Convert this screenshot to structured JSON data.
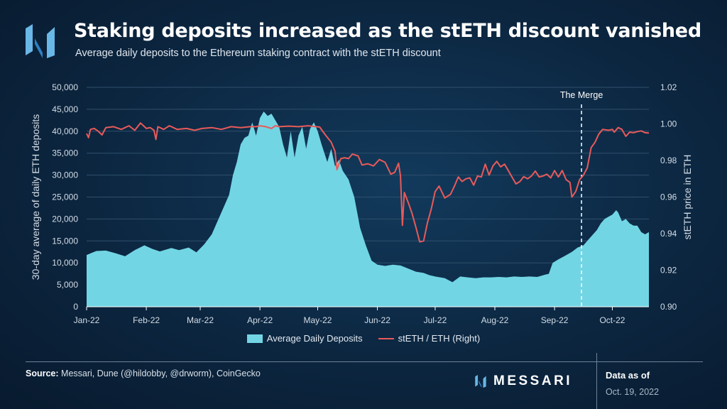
{
  "title": "Staking deposits increased as the stETH discount vanished",
  "subtitle": "Average daily deposits to the Ethereum staking contract with the stETH discount",
  "footer": {
    "source_label": "Source:",
    "source_text": "Messari, Dune (@hildobby, @drworm), CoinGecko",
    "brand": "MESSARI",
    "as_of_label": "Data as of",
    "as_of_date": "Oct. 19, 2022"
  },
  "colors": {
    "deposits": "#72d5e4",
    "steth": "#e85a5a",
    "axis_text": "#d3dde6",
    "grid": "#2f4f6c"
  },
  "chart_data": {
    "type": "area",
    "title": "Staking deposits increased as the stETH discount vanished",
    "ylabel": "30-day average of daily ETH deposits",
    "y2label": "stETH price in ETH",
    "ylim": [
      0,
      50000
    ],
    "y2lim": [
      0.9,
      1.02
    ],
    "yticks": [
      "0",
      "5,000",
      "10,000",
      "15,000",
      "20,000",
      "25,000",
      "30,000",
      "35,000",
      "40,000",
      "45,000",
      "50,000"
    ],
    "y2ticks": [
      "0.90",
      "0.92",
      "0.94",
      "0.96",
      "0.98",
      "1.00",
      "1.02"
    ],
    "x_range_days": [
      0,
      292
    ],
    "xticks": [
      {
        "label": "Jan-22",
        "day": 0
      },
      {
        "label": "Feb-22",
        "day": 31
      },
      {
        "label": "Mar-22",
        "day": 59
      },
      {
        "label": "Apr-22",
        "day": 90
      },
      {
        "label": "May-22",
        "day": 120
      },
      {
        "label": "Jun-22",
        "day": 151
      },
      {
        "label": "Jul-22",
        "day": 181
      },
      {
        "label": "Aug-22",
        "day": 212
      },
      {
        "label": "Sep-22",
        "day": 243
      },
      {
        "label": "Oct-22",
        "day": 273
      }
    ],
    "annotation": {
      "label": "The Merge",
      "day": 257
    },
    "legend": [
      "Average Daily Deposits",
      "stETH / ETH (Right)"
    ],
    "series": [
      {
        "name": "Average Daily Deposits",
        "axis": "left",
        "points": [
          [
            0,
            11800
          ],
          [
            5,
            12700
          ],
          [
            10,
            12800
          ],
          [
            15,
            12200
          ],
          [
            20,
            11500
          ],
          [
            25,
            12900
          ],
          [
            30,
            14000
          ],
          [
            34,
            13200
          ],
          [
            38,
            12600
          ],
          [
            44,
            13400
          ],
          [
            48,
            12900
          ],
          [
            53,
            13500
          ],
          [
            57,
            12400
          ],
          [
            61,
            14200
          ],
          [
            65,
            16500
          ],
          [
            68,
            19500
          ],
          [
            71,
            22500
          ],
          [
            74,
            25500
          ],
          [
            76,
            30000
          ],
          [
            78,
            33000
          ],
          [
            80,
            37000
          ],
          [
            82,
            38500
          ],
          [
            84,
            39000
          ],
          [
            86,
            42000
          ],
          [
            88,
            39000
          ],
          [
            90,
            43000
          ],
          [
            92,
            44500
          ],
          [
            94,
            43500
          ],
          [
            96,
            44000
          ],
          [
            98,
            42500
          ],
          [
            100,
            41000
          ],
          [
            102,
            37000
          ],
          [
            104,
            34000
          ],
          [
            106,
            40000
          ],
          [
            108,
            34000
          ],
          [
            110,
            39000
          ],
          [
            112,
            41000
          ],
          [
            114,
            36000
          ],
          [
            116,
            40500
          ],
          [
            118,
            42000
          ],
          [
            120,
            40000
          ],
          [
            122,
            37000
          ],
          [
            125,
            33000
          ],
          [
            127,
            36000
          ],
          [
            129,
            32000
          ],
          [
            131,
            33500
          ],
          [
            133,
            31000
          ],
          [
            136,
            29000
          ],
          [
            139,
            25000
          ],
          [
            142,
            18000
          ],
          [
            145,
            14000
          ],
          [
            148,
            10500
          ],
          [
            151,
            9600
          ],
          [
            155,
            9300
          ],
          [
            159,
            9600
          ],
          [
            163,
            9400
          ],
          [
            167,
            8700
          ],
          [
            171,
            8000
          ],
          [
            175,
            7700
          ],
          [
            178,
            7200
          ],
          [
            181,
            6900
          ],
          [
            186,
            6500
          ],
          [
            190,
            5600
          ],
          [
            194,
            6900
          ],
          [
            198,
            6700
          ],
          [
            202,
            6500
          ],
          [
            206,
            6700
          ],
          [
            210,
            6700
          ],
          [
            214,
            6800
          ],
          [
            218,
            6700
          ],
          [
            222,
            6900
          ],
          [
            226,
            6800
          ],
          [
            230,
            6900
          ],
          [
            234,
            6800
          ],
          [
            238,
            7300
          ],
          [
            240,
            7500
          ],
          [
            242,
            10000
          ],
          [
            245,
            10800
          ],
          [
            248,
            11500
          ],
          [
            252,
            12500
          ],
          [
            255,
            13500
          ],
          [
            258,
            14000
          ],
          [
            260,
            15000
          ],
          [
            262,
            16000
          ],
          [
            265,
            17500
          ],
          [
            267,
            19000
          ],
          [
            269,
            20000
          ],
          [
            271,
            20500
          ],
          [
            273,
            21000
          ],
          [
            275,
            22000
          ],
          [
            276,
            21500
          ],
          [
            278,
            19500
          ],
          [
            280,
            20000
          ],
          [
            282,
            19000
          ],
          [
            284,
            18500
          ],
          [
            286,
            18500
          ],
          [
            288,
            17000
          ],
          [
            290,
            16500
          ],
          [
            292,
            17000
          ]
        ]
      },
      {
        "name": "stETH / ETH (Right)",
        "axis": "right",
        "points": [
          [
            0,
            0.9947
          ],
          [
            1,
            0.9925
          ],
          [
            2,
            0.997
          ],
          [
            4,
            0.9975
          ],
          [
            6,
            0.996
          ],
          [
            8,
            0.994
          ],
          [
            10,
            0.998
          ],
          [
            14,
            0.9985
          ],
          [
            18,
            0.997
          ],
          [
            22,
            0.999
          ],
          [
            25,
            0.9965
          ],
          [
            28,
            1.0005
          ],
          [
            31,
            0.9975
          ],
          [
            33,
            0.998
          ],
          [
            35,
            0.9965
          ],
          [
            36,
            0.9915
          ],
          [
            37,
            0.9985
          ],
          [
            40,
            0.997
          ],
          [
            43,
            0.999
          ],
          [
            47,
            0.997
          ],
          [
            52,
            0.9975
          ],
          [
            56,
            0.9965
          ],
          [
            60,
            0.9975
          ],
          [
            65,
            0.998
          ],
          [
            70,
            0.997
          ],
          [
            75,
            0.9985
          ],
          [
            80,
            0.998
          ],
          [
            85,
            0.9985
          ],
          [
            88,
            0.9985
          ],
          [
            90,
            0.999
          ],
          [
            93,
            0.9985
          ],
          [
            96,
            0.9975
          ],
          [
            98,
            0.999
          ],
          [
            100,
            0.9985
          ],
          [
            105,
            0.9988
          ],
          [
            110,
            0.9985
          ],
          [
            115,
            0.999
          ],
          [
            118,
            0.9986
          ],
          [
            121,
            0.9983
          ],
          [
            124,
            0.994
          ],
          [
            127,
            0.99
          ],
          [
            129,
            0.985
          ],
          [
            130,
            0.975
          ],
          [
            132,
            0.981
          ],
          [
            134,
            0.9815
          ],
          [
            136,
            0.981
          ],
          [
            138,
            0.9835
          ],
          [
            141,
            0.9825
          ],
          [
            143,
            0.9775
          ],
          [
            146,
            0.9782
          ],
          [
            149,
            0.977
          ],
          [
            152,
            0.9805
          ],
          [
            155,
            0.979
          ],
          [
            158,
            0.9725
          ],
          [
            160,
            0.9735
          ],
          [
            162,
            0.9785
          ],
          [
            163,
            0.9715
          ],
          [
            164,
            0.9445
          ],
          [
            165,
            0.9625
          ],
          [
            167,
            0.957
          ],
          [
            169,
            0.951
          ],
          [
            171,
            0.9435
          ],
          [
            173,
            0.9355
          ],
          [
            175,
            0.936
          ],
          [
            177,
            0.946
          ],
          [
            179,
            0.9535
          ],
          [
            181,
            0.963
          ],
          [
            183,
            0.966
          ],
          [
            186,
            0.9595
          ],
          [
            189,
            0.9615
          ],
          [
            191,
            0.966
          ],
          [
            193,
            0.971
          ],
          [
            195,
            0.9685
          ],
          [
            197,
            0.97
          ],
          [
            199,
            0.9705
          ],
          [
            201,
            0.9665
          ],
          [
            203,
            0.9715
          ],
          [
            205,
            0.971
          ],
          [
            207,
            0.978
          ],
          [
            209,
            0.972
          ],
          [
            211,
            0.977
          ],
          [
            213,
            0.9795
          ],
          [
            215,
            0.9765
          ],
          [
            217,
            0.978
          ],
          [
            219,
            0.9745
          ],
          [
            221,
            0.9708
          ],
          [
            223,
            0.9672
          ],
          [
            225,
            0.9685
          ],
          [
            227,
            0.9712
          ],
          [
            229,
            0.97
          ],
          [
            231,
            0.9715
          ],
          [
            233,
            0.9742
          ],
          [
            235,
            0.971
          ],
          [
            237,
            0.9715
          ],
          [
            239,
            0.9725
          ],
          [
            241,
            0.9705
          ],
          [
            243,
            0.9745
          ],
          [
            245,
            0.971
          ],
          [
            247,
            0.9745
          ],
          [
            249,
            0.9695
          ],
          [
            251,
            0.968
          ],
          [
            252,
            0.96
          ],
          [
            254,
            0.963
          ],
          [
            256,
            0.9695
          ],
          [
            258,
            0.972
          ],
          [
            260,
            0.976
          ],
          [
            262,
            0.987
          ],
          [
            264,
            0.99
          ],
          [
            266,
            0.9945
          ],
          [
            268,
            0.997
          ],
          [
            271,
            0.9965
          ],
          [
            273,
            0.997
          ],
          [
            274,
            0.9955
          ],
          [
            276,
            0.998
          ],
          [
            278,
            0.997
          ],
          [
            280,
            0.9932
          ],
          [
            282,
            0.9955
          ],
          [
            284,
            0.9952
          ],
          [
            286,
            0.9958
          ],
          [
            288,
            0.9962
          ],
          [
            290,
            0.9952
          ],
          [
            292,
            0.995
          ]
        ]
      }
    ]
  }
}
